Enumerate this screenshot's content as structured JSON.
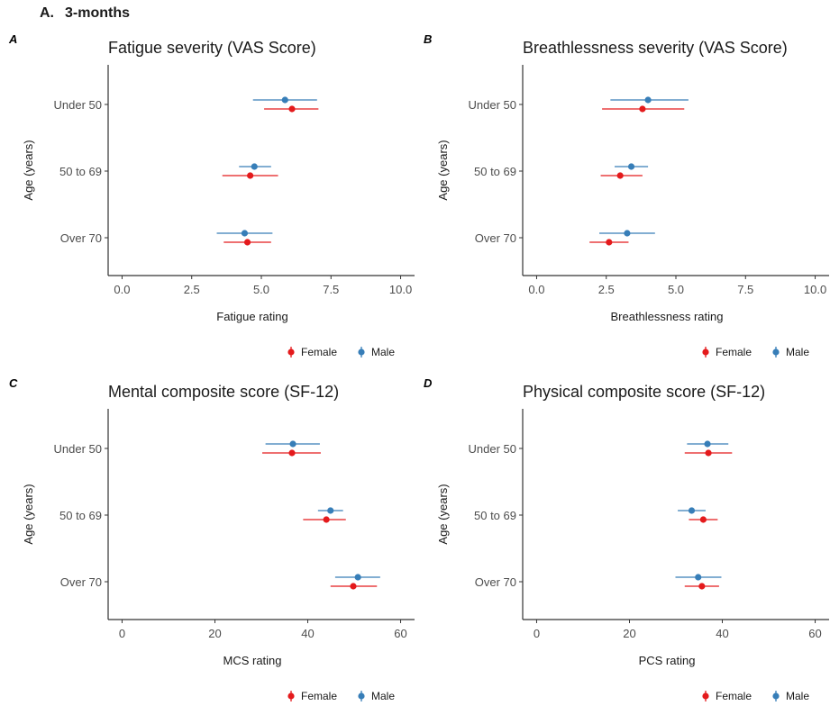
{
  "figure_title": {
    "number": "A.",
    "text": "3-months"
  },
  "colors": {
    "Female": "#e41a1c",
    "Male": "#377eb8"
  },
  "chart_data": [
    {
      "panel": "A",
      "type": "scatter",
      "title": "Fatigue severity (VAS Score)",
      "xlabel": "Fatigue rating",
      "ylabel": "Age (years)",
      "categories": [
        "Under 50",
        "50 to 69",
        "Over 70"
      ],
      "xlim": [
        -0.5,
        10.5
      ],
      "xticks": [
        0,
        2.5,
        5,
        7.5,
        10
      ],
      "xticklabels": [
        "0.0",
        "2.5",
        "5.0",
        "7.5",
        "10.0"
      ],
      "legend_position": "bottom-right",
      "series": [
        {
          "name": "Female",
          "color": "#e41a1c",
          "points": [
            {
              "category": "Under 50",
              "value": 6.1,
              "low": 5.1,
              "high": 7.05
            },
            {
              "category": "50 to 69",
              "value": 4.6,
              "low": 3.6,
              "high": 5.6
            },
            {
              "category": "Over 70",
              "value": 4.5,
              "low": 3.65,
              "high": 5.35
            }
          ]
        },
        {
          "name": "Male",
          "color": "#377eb8",
          "points": [
            {
              "category": "Under 50",
              "value": 5.85,
              "low": 4.7,
              "high": 7.0
            },
            {
              "category": "50 to 69",
              "value": 4.75,
              "low": 4.2,
              "high": 5.35
            },
            {
              "category": "Over 70",
              "value": 4.4,
              "low": 3.4,
              "high": 5.4
            }
          ]
        }
      ]
    },
    {
      "panel": "B",
      "type": "scatter",
      "title": "Breathlessness severity (VAS Score)",
      "xlabel": "Breathlessness rating",
      "ylabel": "Age (years)",
      "categories": [
        "Under 50",
        "50 to 69",
        "Over 70"
      ],
      "xlim": [
        -0.5,
        10.5
      ],
      "xticks": [
        0,
        2.5,
        5,
        7.5,
        10
      ],
      "xticklabels": [
        "0.0",
        "2.5",
        "5.0",
        "7.5",
        "10.0"
      ],
      "legend_position": "bottom-right",
      "series": [
        {
          "name": "Female",
          "color": "#e41a1c",
          "points": [
            {
              "category": "Under 50",
              "value": 3.8,
              "low": 2.35,
              "high": 5.3
            },
            {
              "category": "50 to 69",
              "value": 3.0,
              "low": 2.3,
              "high": 3.8
            },
            {
              "category": "Over 70",
              "value": 2.6,
              "low": 1.9,
              "high": 3.3
            }
          ]
        },
        {
          "name": "Male",
          "color": "#377eb8",
          "points": [
            {
              "category": "Under 50",
              "value": 4.0,
              "low": 2.65,
              "high": 5.45
            },
            {
              "category": "50 to 69",
              "value": 3.4,
              "low": 2.8,
              "high": 4.0
            },
            {
              "category": "Over 70",
              "value": 3.25,
              "low": 2.25,
              "high": 4.25
            }
          ]
        }
      ]
    },
    {
      "panel": "C",
      "type": "scatter",
      "title": "Mental composite score (SF-12)",
      "xlabel": "MCS rating",
      "ylabel": "Age (years)",
      "categories": [
        "Under 50",
        "50 to 69",
        "Over 70"
      ],
      "xlim": [
        -3,
        63
      ],
      "xticks": [
        0,
        20,
        40,
        60
      ],
      "xticklabels": [
        "0",
        "20",
        "40",
        "60"
      ],
      "legend_position": "bottom-right",
      "series": [
        {
          "name": "Female",
          "color": "#e41a1c",
          "points": [
            {
              "category": "Under 50",
              "value": 36.6,
              "low": 30.2,
              "high": 42.8
            },
            {
              "category": "50 to 69",
              "value": 44.0,
              "low": 39.0,
              "high": 48.2
            },
            {
              "category": "Over 70",
              "value": 49.8,
              "low": 44.9,
              "high": 54.9
            }
          ]
        },
        {
          "name": "Male",
          "color": "#377eb8",
          "points": [
            {
              "category": "Under 50",
              "value": 36.8,
              "low": 30.9,
              "high": 42.6
            },
            {
              "category": "50 to 69",
              "value": 44.9,
              "low": 42.2,
              "high": 47.6
            },
            {
              "category": "Over 70",
              "value": 50.8,
              "low": 45.9,
              "high": 55.6
            }
          ]
        }
      ]
    },
    {
      "panel": "D",
      "type": "scatter",
      "title": "Physical composite score (SF-12)",
      "xlabel": "PCS rating",
      "ylabel": "Age (years)",
      "categories": [
        "Under 50",
        "50 to 69",
        "Over 70"
      ],
      "xlim": [
        -3,
        63
      ],
      "xticks": [
        0,
        20,
        40,
        60
      ],
      "xticklabels": [
        "0",
        "20",
        "40",
        "60"
      ],
      "legend_position": "bottom-right",
      "series": [
        {
          "name": "Female",
          "color": "#e41a1c",
          "points": [
            {
              "category": "Under 50",
              "value": 37.0,
              "low": 31.9,
              "high": 42.1
            },
            {
              "category": "50 to 69",
              "value": 35.9,
              "low": 32.8,
              "high": 39.0
            },
            {
              "category": "Over 70",
              "value": 35.6,
              "low": 31.9,
              "high": 39.3
            }
          ]
        },
        {
          "name": "Male",
          "color": "#377eb8",
          "points": [
            {
              "category": "Under 50",
              "value": 36.8,
              "low": 32.4,
              "high": 41.3
            },
            {
              "category": "50 to 69",
              "value": 33.4,
              "low": 30.4,
              "high": 36.4
            },
            {
              "category": "Over 70",
              "value": 34.8,
              "low": 29.9,
              "high": 39.8
            }
          ]
        }
      ]
    }
  ]
}
